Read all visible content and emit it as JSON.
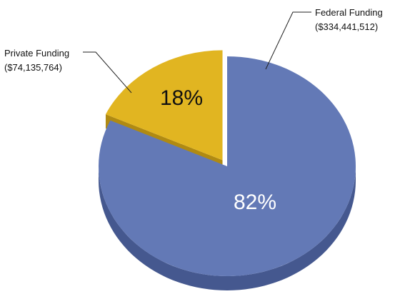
{
  "chart_data": {
    "type": "pie",
    "style": "3d-exploded",
    "title": "",
    "slices": [
      {
        "label": "Federal Funding",
        "amount": "($334,441,512)",
        "value": 334441512,
        "percent_label": "82%",
        "color": "#6379b6",
        "side_color": "#45588f",
        "text_color": "#ffffff",
        "exploded": false
      },
      {
        "label": "Private Funding",
        "amount": "($74,135,764)",
        "value": 74135764,
        "percent_label": "18%",
        "color": "#e1b521",
        "side_color": "#b08a12",
        "text_color": "#111111",
        "exploded": true
      }
    ]
  }
}
